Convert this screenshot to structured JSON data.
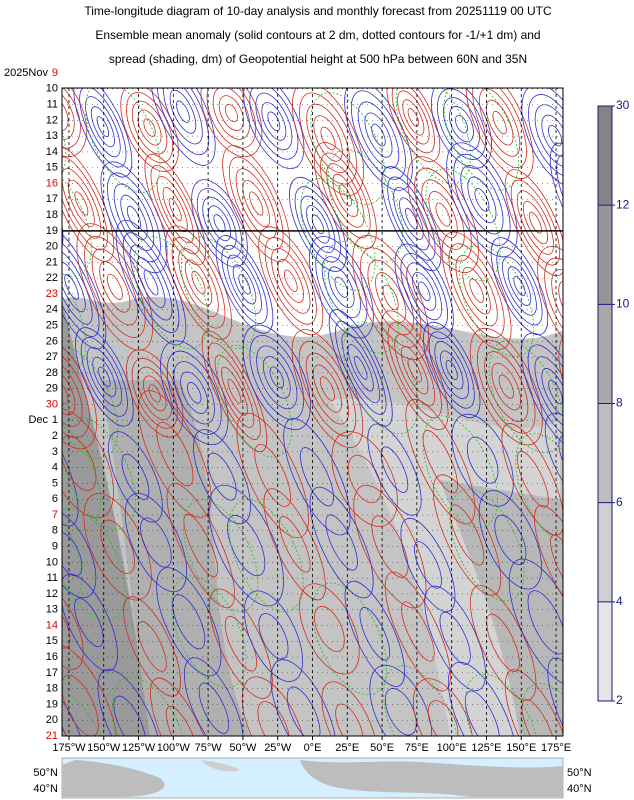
{
  "chart_data": {
    "type": "contour",
    "title": [
      "Time-longitude diagram of 10-day analysis and monthly forecast from 20251119 00 UTC",
      "Ensemble mean anomaly (solid contours at 2 dm, dotted contours for -1/+1 dm) and",
      "spread (shading, dm) of Geopotential height at 500 hPa between 60N and 35N"
    ],
    "months": [
      {
        "name": "2025Nov",
        "days": [
          "9",
          "10",
          "11",
          "12",
          "13",
          "14",
          "15",
          "16",
          "17",
          "18",
          "19",
          "20",
          "21",
          "22",
          "23",
          "24",
          "25",
          "26",
          "27",
          "28",
          "29",
          "30"
        ],
        "day_colors": [
          "#e00000",
          "#000",
          "#000",
          "#000",
          "#000",
          "#000",
          "#000",
          "#e00000",
          "#000",
          "#000",
          "#000",
          "#000",
          "#000",
          "#000",
          "#e00000",
          "#000",
          "#000",
          "#000",
          "#000",
          "#000",
          "#000",
          "#e00000"
        ]
      },
      {
        "name": "Dec",
        "days": [
          "1",
          "2",
          "3",
          "4",
          "5",
          "6",
          "7",
          "8",
          "9",
          "10",
          "11",
          "12",
          "13",
          "14",
          "15",
          "16",
          "17",
          "18",
          "19",
          "20",
          "21"
        ],
        "day_colors": [
          "#000",
          "#000",
          "#000",
          "#000",
          "#000",
          "#000",
          "#e00000",
          "#000",
          "#000",
          "#000",
          "#000",
          "#000",
          "#000",
          "#e00000",
          "#000",
          "#000",
          "#000",
          "#000",
          "#000",
          "#000",
          "#e00000"
        ]
      }
    ],
    "divider_day": "19",
    "xlim": [
      -180,
      180
    ],
    "xticks": [
      {
        "value": -175,
        "label": "175°W"
      },
      {
        "value": -150,
        "label": "150°W"
      },
      {
        "value": -125,
        "label": "125°W"
      },
      {
        "value": -100,
        "label": "100°W"
      },
      {
        "value": -75,
        "label": "75°W"
      },
      {
        "value": -50,
        "label": "50°W"
      },
      {
        "value": -25,
        "label": "25°W"
      },
      {
        "value": 0,
        "label": "0°E"
      },
      {
        "value": 25,
        "label": "25°E"
      },
      {
        "value": 50,
        "label": "50°E"
      },
      {
        "value": 75,
        "label": "75°E"
      },
      {
        "value": 100,
        "label": "100°E"
      },
      {
        "value": 125,
        "label": "125°E"
      },
      {
        "value": 150,
        "label": "150°E"
      },
      {
        "value": 175,
        "label": "175°E"
      }
    ],
    "colorbar": {
      "levels": [
        2,
        4,
        6,
        8,
        10,
        12,
        30
      ],
      "colors": [
        "#e6e6e6",
        "#d0d0d0",
        "#bdbdbd",
        "#a9a9a9",
        "#969696",
        "#848484"
      ]
    },
    "map_labels": {
      "left": [
        "50°N",
        "40°N"
      ],
      "right": [
        "50°N",
        "40°N"
      ]
    }
  }
}
